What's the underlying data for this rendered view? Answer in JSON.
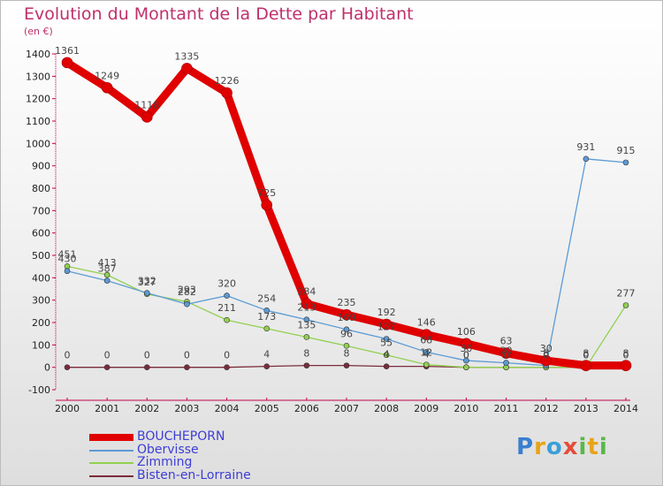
{
  "chart_data": {
    "type": "line",
    "title": "Evolution du Montant de la Dette par Habitant",
    "ylabel": "(en €)",
    "xlabel": "",
    "x": [
      "2000",
      "2001",
      "2002",
      "2003",
      "2004",
      "2005",
      "2006",
      "2007",
      "2008",
      "2009",
      "2010",
      "2011",
      "2012",
      "2013",
      "2014"
    ],
    "ylim": [
      -100,
      1400
    ],
    "yticks": [
      -100,
      0,
      100,
      200,
      300,
      400,
      500,
      600,
      700,
      800,
      900,
      1000,
      1100,
      1200,
      1300,
      1400
    ],
    "grid": false,
    "legend_position": "bottom-left",
    "series": [
      {
        "name": "BOUCHEPORN",
        "color": "#e00000",
        "values": [
          1361,
          1249,
          1118,
          1335,
          1226,
          725,
          284,
          235,
          192,
          146,
          106,
          63,
          30,
          8,
          8
        ]
      },
      {
        "name": "Obervisse",
        "color": "#5b9bd5",
        "values": [
          430,
          387,
          332,
          282,
          320,
          254,
          213,
          169,
          127,
          68,
          30,
          20,
          8,
          931,
          915
        ]
      },
      {
        "name": "Zimming",
        "color": "#92d050",
        "values": [
          451,
          413,
          327,
          293,
          211,
          173,
          135,
          96,
          55,
          12,
          0,
          0,
          0,
          0,
          277
        ]
      },
      {
        "name": "Bisten-en-Lorraine",
        "color": "#7b2c3b",
        "values": [
          0,
          0,
          0,
          0,
          0,
          4,
          8,
          8,
          4,
          4,
          0,
          0,
          0,
          0,
          0
        ]
      }
    ]
  },
  "brand": {
    "parts": [
      "P",
      "r",
      "o",
      "x",
      "i",
      "t",
      "i"
    ]
  }
}
